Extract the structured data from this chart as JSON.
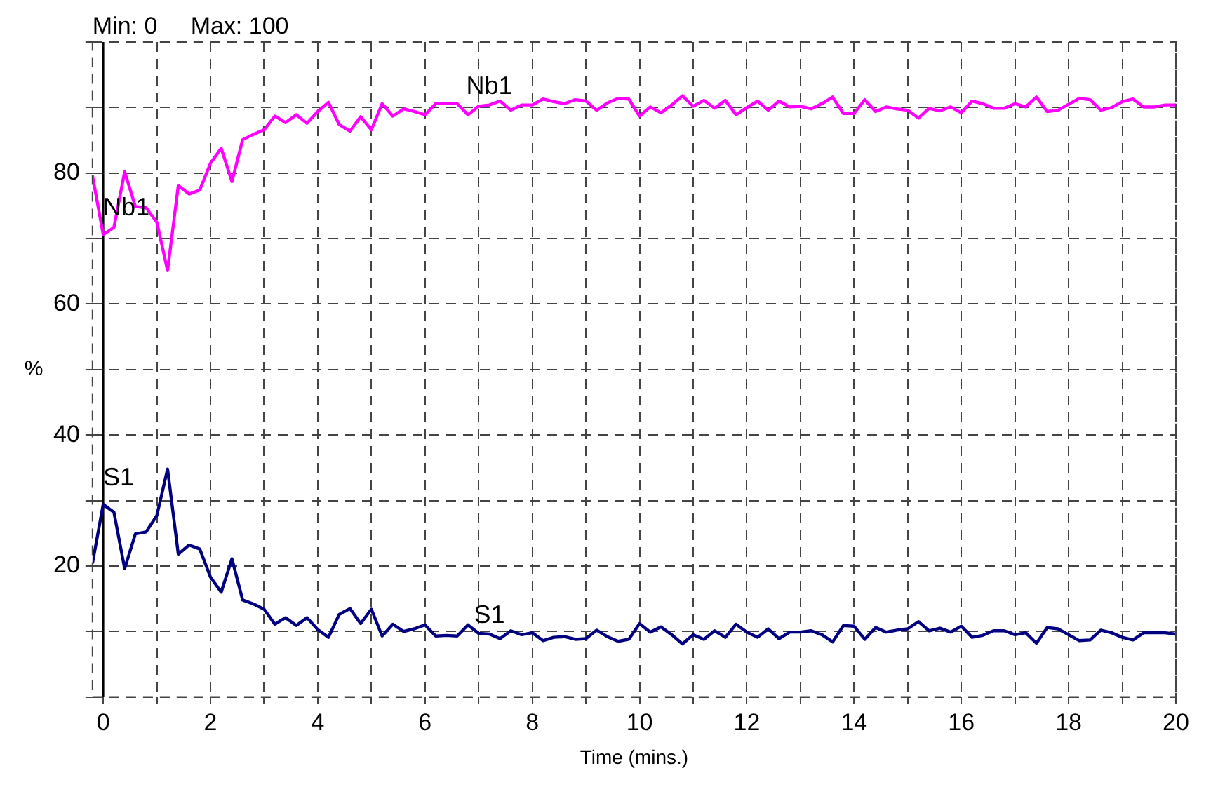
{
  "chart_data": {
    "type": "line",
    "title": "Min: 0     Max: 100",
    "xlabel": "Time (mins.)",
    "ylabel": "%",
    "x": [
      -0.2,
      0,
      0.2,
      0.4,
      0.6,
      0.8,
      1,
      1.2,
      1.4,
      1.6,
      1.8,
      2,
      2.2,
      2.4,
      2.6,
      2.8,
      3,
      3.2,
      3.4,
      3.6,
      3.8,
      4,
      4.2,
      4.4,
      4.6,
      4.8,
      5,
      5.2,
      5.4,
      5.6,
      5.8,
      6,
      6.2,
      6.4,
      6.6,
      6.8,
      7,
      7.2,
      7.4,
      7.6,
      7.8,
      8,
      8.2,
      8.4,
      8.6,
      8.8,
      9,
      9.2,
      9.4,
      9.6,
      9.8,
      10,
      10.2,
      10.4,
      10.6,
      10.8,
      11,
      11.2,
      11.4,
      11.6,
      11.8,
      12,
      12.2,
      12.4,
      12.6,
      12.8,
      13,
      13.2,
      13.4,
      13.6,
      13.8,
      14,
      14.2,
      14.4,
      14.6,
      14.8,
      15,
      15.2,
      15.4,
      15.6,
      15.8,
      16,
      16.2,
      16.4,
      16.6,
      16.8,
      17,
      17.2,
      17.4,
      17.6,
      17.8,
      18,
      18.2,
      18.4,
      18.6,
      18.8,
      19,
      19.2,
      19.4,
      19.6,
      19.8,
      20
    ],
    "series": [
      {
        "name": "Nb1",
        "color": "#ff00ff",
        "values": [
          79.6,
          70.6,
          71.7,
          80.2,
          74.9,
          74.7,
          72.5,
          65.1,
          78.1,
          76.8,
          77.4,
          81.5,
          83.8,
          78.7,
          85.1,
          85.9,
          86.6,
          88.7,
          87.7,
          88.9,
          87.6,
          89.4,
          90.8,
          87.4,
          86.4,
          88.6,
          86.6,
          90.6,
          88.7,
          89.8,
          89.4,
          88.9,
          90.6,
          90.6,
          90.6,
          88.9,
          90.2,
          90.4,
          91.0,
          89.6,
          90.4,
          90.4,
          91.3,
          90.9,
          90.6,
          91.2,
          91.0,
          89.6,
          90.7,
          91.4,
          91.3,
          88.7,
          90.1,
          89.2,
          90.4,
          91.8,
          90.2,
          91.1,
          89.9,
          91.1,
          88.9,
          90.0,
          91.0,
          89.6,
          91.0,
          90.1,
          90.2,
          89.8,
          90.6,
          91.6,
          89.1,
          89.1,
          91.2,
          89.4,
          90.1,
          89.8,
          89.6,
          88.4,
          89.9,
          89.5,
          90.1,
          89.2,
          91.0,
          90.6,
          89.9,
          89.9,
          90.6,
          90.1,
          91.6,
          89.4,
          89.6,
          90.5,
          91.4,
          91.2,
          89.6,
          90.0,
          90.9,
          91.3,
          90.1,
          90.1,
          90.4,
          90.4
        ]
      },
      {
        "name": "S1",
        "color": "#000080",
        "values": [
          20.4,
          29.4,
          28.2,
          19.6,
          24.9,
          25.2,
          27.7,
          34.8,
          21.8,
          23.2,
          22.6,
          18.3,
          16.0,
          21.1,
          14.8,
          14.2,
          13.4,
          11.1,
          12.1,
          10.9,
          12.1,
          10.3,
          9.1,
          12.6,
          13.5,
          11.2,
          13.4,
          9.3,
          11.1,
          10.0,
          10.4,
          11.0,
          9.3,
          9.4,
          9.3,
          11.0,
          9.7,
          9.6,
          8.9,
          10.1,
          9.5,
          9.8,
          8.6,
          9.1,
          9.2,
          8.8,
          8.9,
          10.2,
          9.2,
          8.5,
          8.8,
          11.2,
          9.9,
          10.7,
          9.5,
          8.1,
          9.5,
          8.8,
          10.1,
          9.1,
          11.1,
          9.9,
          9.1,
          10.4,
          8.9,
          9.9,
          9.9,
          10.1,
          9.5,
          8.4,
          10.9,
          10.8,
          8.8,
          10.6,
          9.9,
          10.2,
          10.4,
          11.5,
          10.1,
          10.5,
          9.9,
          10.8,
          9.1,
          9.4,
          10.1,
          10.1,
          9.5,
          9.8,
          8.2,
          10.6,
          10.4,
          9.5,
          8.6,
          8.7,
          10.2,
          9.8,
          9.1,
          8.7,
          9.8,
          9.8,
          9.8,
          9.6
        ]
      }
    ],
    "annotations": [
      {
        "text": "Nb1",
        "x": 7.2,
        "y": 90.4
      },
      {
        "text": "S1",
        "x": 7.2,
        "y": 9.6
      }
    ],
    "ref_lines": [
      {
        "axis": "x",
        "value": 0,
        "color": "#000000"
      }
    ],
    "xlim": [
      -0.2,
      20
    ],
    "xticks": [
      0,
      {
        "value": 1,
        "label": null
      },
      2,
      {
        "value": 3,
        "label": null
      },
      4,
      {
        "value": 5,
        "label": null
      },
      6,
      {
        "value": 7,
        "label": null
      },
      8,
      {
        "value": 9,
        "label": null
      },
      10,
      {
        "value": 11,
        "label": null
      },
      12,
      {
        "value": 13,
        "label": null
      },
      14,
      {
        "value": 15,
        "label": null
      },
      16,
      {
        "value": 17,
        "label": null
      },
      18,
      {
        "value": 19,
        "label": null
      },
      20
    ],
    "ylim": [
      0,
      100
    ],
    "yticks": [
      {
        "value": 0,
        "label": null
      },
      {
        "value": 10,
        "label": null
      },
      20,
      {
        "value": 30,
        "label": null
      },
      40,
      {
        "value": 50,
        "label": null
      },
      60,
      {
        "value": 70,
        "label": null
      },
      80,
      {
        "value": 90,
        "label": null
      },
      {
        "value": 100,
        "label": null
      }
    ],
    "grid": true,
    "legend": false,
    "marker": "none",
    "line_style": "solid"
  }
}
